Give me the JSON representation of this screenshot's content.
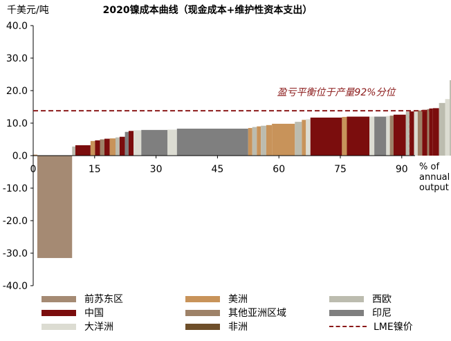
{
  "chart_data": {
    "type": "bar",
    "title": "2020镍成本曲线（现金成本+维护性资本支出）",
    "ylabel": "千美元/吨",
    "xlabel": "% of annual output",
    "xlabel_lines": [
      "% of",
      "annual",
      "output"
    ],
    "ylim": [
      -40,
      40
    ],
    "xlim": [
      0,
      100
    ],
    "y_ticks": [
      "40.0",
      "30.0",
      "20.0",
      "10.0",
      "0.0",
      "-10.0",
      "-20.0",
      "-30.0",
      "-40.0"
    ],
    "y_tick_values": [
      40,
      30,
      20,
      10,
      0,
      -10,
      -20,
      -30,
      -40
    ],
    "x_ticks": [
      "0",
      "15",
      "30",
      "45",
      "60",
      "75",
      "90"
    ],
    "x_tick_values": [
      0,
      15,
      30,
      45,
      60,
      75,
      90
    ],
    "breakeven": {
      "value": 13.8,
      "label": "盈亏平衡位于产量92%分位",
      "legend": "LME镍价"
    },
    "series_colors": {
      "前苏东区": "#a58a73",
      "美洲": "#c8935a",
      "西欧": "#bcbcaf",
      "中国": "#7b0d0d",
      "其他亚洲区域": "#9e8268",
      "印尼": "#7f7f7f",
      "大洋洲": "#dcdcd2",
      "非洲": "#6e4f2a",
      "LME镍价": "#8b1a1a"
    },
    "legend": [
      {
        "name": "前苏东区",
        "kind": "bar"
      },
      {
        "name": "美洲",
        "kind": "bar"
      },
      {
        "name": "西欧",
        "kind": "bar"
      },
      {
        "name": "中国",
        "kind": "bar"
      },
      {
        "name": "其他亚洲区域",
        "kind": "bar"
      },
      {
        "name": "印尼",
        "kind": "bar"
      },
      {
        "name": "大洋洲",
        "kind": "bar"
      },
      {
        "name": "非洲",
        "kind": "bar"
      },
      {
        "name": "LME镍价",
        "kind": "dash"
      }
    ],
    "bars": [
      {
        "x0": 0.0,
        "x1": 1.0,
        "y": 0.3,
        "region": "美洲"
      },
      {
        "x0": 1.0,
        "x1": 9.5,
        "y": -31.5,
        "region": "前苏东区"
      },
      {
        "x0": 9.5,
        "x1": 10.3,
        "y": 2.8,
        "region": "西欧"
      },
      {
        "x0": 10.3,
        "x1": 14.0,
        "y": 3.2,
        "region": "中国"
      },
      {
        "x0": 14.0,
        "x1": 15.1,
        "y": 4.5,
        "region": "美洲"
      },
      {
        "x0": 15.1,
        "x1": 16.3,
        "y": 4.7,
        "region": "中国"
      },
      {
        "x0": 16.3,
        "x1": 17.4,
        "y": 5.0,
        "region": "其他亚洲区域"
      },
      {
        "x0": 17.4,
        "x1": 18.7,
        "y": 5.2,
        "region": "中国"
      },
      {
        "x0": 18.7,
        "x1": 20.1,
        "y": 5.3,
        "region": "美洲"
      },
      {
        "x0": 20.1,
        "x1": 21.1,
        "y": 5.6,
        "region": "西欧"
      },
      {
        "x0": 21.1,
        "x1": 22.4,
        "y": 5.8,
        "region": "中国"
      },
      {
        "x0": 22.4,
        "x1": 23.3,
        "y": 7.3,
        "region": "印尼"
      },
      {
        "x0": 23.3,
        "x1": 24.5,
        "y": 7.6,
        "region": "中国"
      },
      {
        "x0": 24.5,
        "x1": 26.4,
        "y": 7.8,
        "region": "大洋洲"
      },
      {
        "x0": 26.4,
        "x1": 32.8,
        "y": 7.9,
        "region": "印尼"
      },
      {
        "x0": 32.8,
        "x1": 35.1,
        "y": 8.0,
        "region": "大洋洲"
      },
      {
        "x0": 35.1,
        "x1": 52.5,
        "y": 8.3,
        "region": "印尼"
      },
      {
        "x0": 52.5,
        "x1": 53.5,
        "y": 8.5,
        "region": "美洲"
      },
      {
        "x0": 53.5,
        "x1": 54.6,
        "y": 8.8,
        "region": "西欧"
      },
      {
        "x0": 54.6,
        "x1": 55.6,
        "y": 9.0,
        "region": "美洲"
      },
      {
        "x0": 55.6,
        "x1": 56.9,
        "y": 9.2,
        "region": "西欧"
      },
      {
        "x0": 56.9,
        "x1": 58.3,
        "y": 9.4,
        "region": "美洲"
      },
      {
        "x0": 58.3,
        "x1": 63.9,
        "y": 9.8,
        "region": "美洲"
      },
      {
        "x0": 63.9,
        "x1": 65.6,
        "y": 10.4,
        "region": "西欧"
      },
      {
        "x0": 65.6,
        "x1": 66.6,
        "y": 11.0,
        "region": "美洲"
      },
      {
        "x0": 66.6,
        "x1": 67.7,
        "y": 11.2,
        "region": "大洋洲"
      },
      {
        "x0": 67.7,
        "x1": 75.4,
        "y": 11.7,
        "region": "中国"
      },
      {
        "x0": 75.4,
        "x1": 76.6,
        "y": 11.9,
        "region": "美洲"
      },
      {
        "x0": 76.6,
        "x1": 82.1,
        "y": 12.0,
        "region": "中国"
      },
      {
        "x0": 82.1,
        "x1": 83.3,
        "y": 12.0,
        "region": "大洋洲"
      },
      {
        "x0": 83.3,
        "x1": 86.2,
        "y": 12.0,
        "region": "印尼"
      },
      {
        "x0": 86.2,
        "x1": 87.1,
        "y": 12.2,
        "region": "大洋洲"
      },
      {
        "x0": 87.1,
        "x1": 88.0,
        "y": 12.3,
        "region": "其他亚洲区域"
      },
      {
        "x0": 88.0,
        "x1": 91.0,
        "y": 12.6,
        "region": "中国"
      },
      {
        "x0": 91.0,
        "x1": 91.9,
        "y": 13.5,
        "region": "西欧"
      },
      {
        "x0": 91.9,
        "x1": 93.0,
        "y": 13.6,
        "region": "中国"
      },
      {
        "x0": 93.0,
        "x1": 93.9,
        "y": 13.7,
        "region": "大洋洲"
      },
      {
        "x0": 93.9,
        "x1": 95.0,
        "y": 13.9,
        "region": "其他亚洲区域"
      },
      {
        "x0": 95.0,
        "x1": 96.2,
        "y": 14.1,
        "region": "中国"
      },
      {
        "x0": 96.2,
        "x1": 96.7,
        "y": 14.3,
        "region": "其他亚洲区域"
      },
      {
        "x0": 96.7,
        "x1": 97.6,
        "y": 14.5,
        "region": "中国"
      },
      {
        "x0": 97.6,
        "x1": 99.1,
        "y": 14.6,
        "region": "中国"
      },
      {
        "x0": 99.1,
        "x1": 100.6,
        "y": 16.2,
        "region": "西欧"
      },
      {
        "x0": 100.6,
        "x1": 101.7,
        "y": 17.4,
        "region": "大洋洲"
      },
      {
        "x0": 101.7,
        "x1": 102.9,
        "y": 23.2,
        "region": "西欧"
      }
    ]
  }
}
